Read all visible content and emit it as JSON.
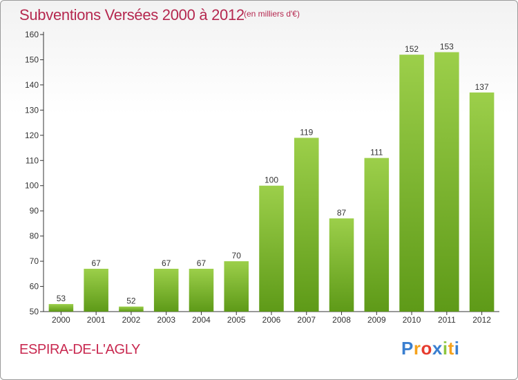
{
  "header": {
    "title": "Subventions Versées 2000 à 2012",
    "subtitle": "(en milliers d'€)"
  },
  "footer": {
    "commune": "ESPIRA-DE-L'AGLY",
    "logo_letters": [
      "P",
      "r",
      "o",
      "x",
      "i",
      "t",
      "i"
    ],
    "logo_colors": [
      "#3a7fd0",
      "#f5a21c",
      "#e63b2e",
      "#3a7fd0",
      "#8cc63f",
      "#f5a21c",
      "#3a7fd0"
    ]
  },
  "chart_data": {
    "type": "bar",
    "title": "Subventions Versées 2000 à 2012",
    "subtitle": "(en milliers d'€)",
    "xlabel": "",
    "ylabel": "",
    "categories": [
      "2000",
      "2001",
      "2002",
      "2003",
      "2004",
      "2005",
      "2006",
      "2007",
      "2008",
      "2009",
      "2010",
      "2011",
      "2012"
    ],
    "values": [
      53,
      67,
      52,
      67,
      67,
      70,
      100,
      119,
      87,
      111,
      152,
      153,
      137
    ],
    "ylim": [
      50,
      160
    ],
    "yticks": [
      50,
      60,
      70,
      80,
      90,
      100,
      110,
      120,
      130,
      140,
      150,
      160
    ],
    "grid": false,
    "legend": "none",
    "bar_color_top": "#9ccf4a",
    "bar_color_bottom": "#5e9a18",
    "axis_color": "#333333"
  }
}
